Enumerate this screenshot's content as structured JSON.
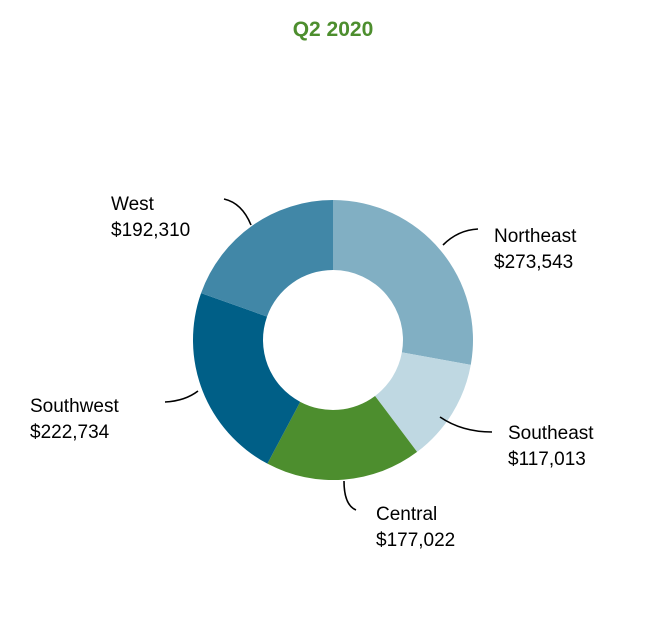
{
  "chart_data": {
    "type": "pie",
    "donut": true,
    "title": "Q2 2020",
    "title_color": "#4d8e2e",
    "categories": [
      "Northeast",
      "Southeast",
      "Central",
      "Southwest",
      "West"
    ],
    "values": [
      273543,
      117013,
      177022,
      222734,
      192310
    ],
    "value_labels": [
      "$273,543",
      "$117,013",
      "$177,022",
      "$222,734",
      "$192,310"
    ],
    "colors": [
      "#81afc3",
      "#bfd8e2",
      "#4d8e2e",
      "#005f87",
      "#4187a7"
    ],
    "start": "top",
    "direction": "clockwise",
    "legend": "none"
  }
}
